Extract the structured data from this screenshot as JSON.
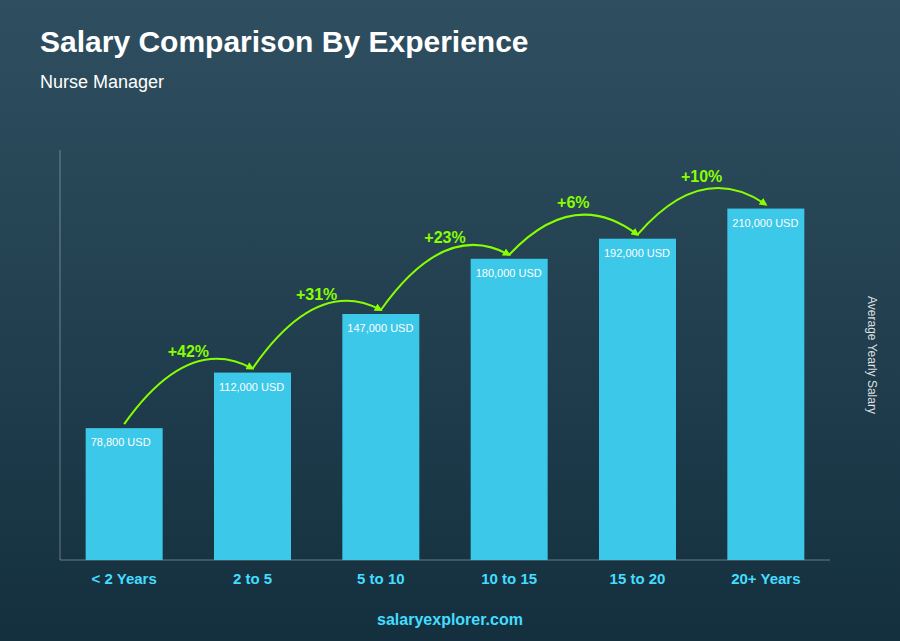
{
  "chart_data": {
    "type": "bar",
    "title": "Salary Comparison By Experience",
    "subtitle": "Nurse Manager",
    "ylabel": "Average Yearly Salary",
    "source": "salaryexplorer.com",
    "categories": [
      "< 2 Years",
      "2 to 5",
      "5 to 10",
      "10 to 15",
      "15 to 20",
      "20+ Years"
    ],
    "values": [
      78800,
      112000,
      147000,
      180000,
      192000,
      210000
    ],
    "value_labels": [
      "78,800 USD",
      "112,000 USD",
      "147,000 USD",
      "180,000 USD",
      "192,000 USD",
      "210,000 USD"
    ],
    "annotations": [
      "+42%",
      "+31%",
      "+23%",
      "+6%",
      "+10%"
    ],
    "color": "#3cc8e8",
    "ylim": [
      0,
      245000
    ],
    "data_labels": true,
    "tick_labels": "x",
    "grid": false
  }
}
